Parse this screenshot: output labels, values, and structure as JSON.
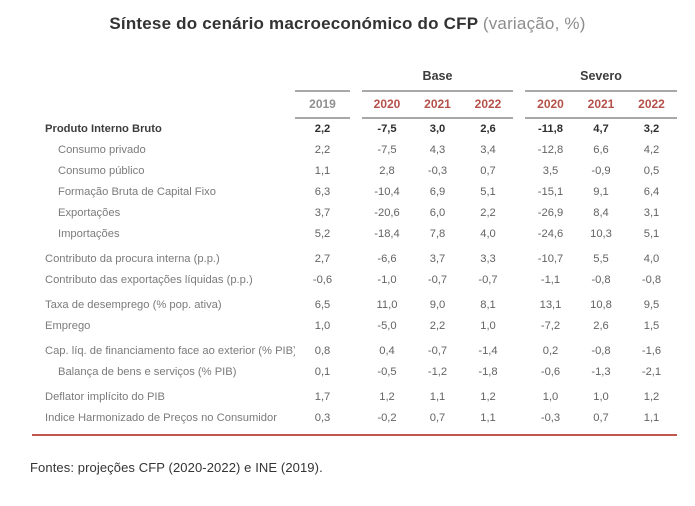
{
  "title": {
    "main": "Síntese do cenário macroeconómico do CFP ",
    "sub": "(variação, %)"
  },
  "table": {
    "group_headers": {
      "base": "Base",
      "severo": "Severo"
    },
    "baseline_year": "2019",
    "base_years": [
      "2020",
      "2021",
      "2022"
    ],
    "severo_years": [
      "2020",
      "2021",
      "2022"
    ],
    "columns": [
      "2019",
      "Base 2020",
      "Base 2021",
      "Base 2022",
      "Severo 2020",
      "Severo 2021",
      "Severo 2022"
    ],
    "rows": [
      {
        "label": "Produto Interno Bruto",
        "bold": true,
        "indent": false,
        "spaced": false,
        "values": [
          "2,2",
          "-7,5",
          "3,0",
          "2,6",
          "-11,8",
          "4,7",
          "3,2"
        ]
      },
      {
        "label": "Consumo privado",
        "bold": false,
        "indent": true,
        "spaced": false,
        "values": [
          "2,2",
          "-7,5",
          "4,3",
          "3,4",
          "-12,8",
          "6,6",
          "4,2"
        ]
      },
      {
        "label": "Consumo público",
        "bold": false,
        "indent": true,
        "spaced": false,
        "values": [
          "1,1",
          "2,8",
          "-0,3",
          "0,7",
          "3,5",
          "-0,9",
          "0,5"
        ]
      },
      {
        "label": "Formação Bruta de Capital Fixo",
        "bold": false,
        "indent": true,
        "spaced": false,
        "values": [
          "6,3",
          "-10,4",
          "6,9",
          "5,1",
          "-15,1",
          "9,1",
          "6,4"
        ]
      },
      {
        "label": "Exportações",
        "bold": false,
        "indent": true,
        "spaced": false,
        "values": [
          "3,7",
          "-20,6",
          "6,0",
          "2,2",
          "-26,9",
          "8,4",
          "3,1"
        ]
      },
      {
        "label": "Importações",
        "bold": false,
        "indent": true,
        "spaced": false,
        "values": [
          "5,2",
          "-18,4",
          "7,8",
          "4,0",
          "-24,6",
          "10,3",
          "5,1"
        ]
      },
      {
        "label": "Contributo da procura interna (p.p.)",
        "bold": false,
        "indent": false,
        "spaced": true,
        "values": [
          "2,7",
          "-6,6",
          "3,7",
          "3,3",
          "-10,7",
          "5,5",
          "4,0"
        ]
      },
      {
        "label": "Contributo das exportações líquidas (p.p.)",
        "bold": false,
        "indent": false,
        "spaced": false,
        "values": [
          "-0,6",
          "-1,0",
          "-0,7",
          "-0,7",
          "-1,1",
          "-0,8",
          "-0,8"
        ]
      },
      {
        "label": "Taxa de desemprego (% pop. ativa)",
        "bold": false,
        "indent": false,
        "spaced": true,
        "values": [
          "6,5",
          "11,0",
          "9,0",
          "8,1",
          "13,1",
          "10,8",
          "9,5"
        ]
      },
      {
        "label": "Emprego",
        "bold": false,
        "indent": false,
        "spaced": false,
        "values": [
          "1,0",
          "-5,0",
          "2,2",
          "1,0",
          "-7,2",
          "2,6",
          "1,5"
        ]
      },
      {
        "label": "Cap. líq. de financiamento face ao exterior (% PIB)",
        "bold": false,
        "indent": false,
        "spaced": true,
        "values": [
          "0,8",
          "0,4",
          "-0,7",
          "-1,4",
          "0,2",
          "-0,8",
          "-1,6"
        ]
      },
      {
        "label": "Balança de bens e serviços (% PIB)",
        "bold": false,
        "indent": true,
        "spaced": false,
        "values": [
          "0,1",
          "-0,5",
          "-1,2",
          "-1,8",
          "-0,6",
          "-1,3",
          "-2,1"
        ]
      },
      {
        "label": "Deflator implícito do PIB",
        "bold": false,
        "indent": false,
        "spaced": true,
        "values": [
          "1,7",
          "1,2",
          "1,1",
          "1,2",
          "1,0",
          "1,0",
          "1,2"
        ]
      },
      {
        "label": "Indice Harmonizado de Preços no Consumidor",
        "bold": false,
        "indent": false,
        "spaced": false,
        "values": [
          "0,3",
          "-0,2",
          "0,7",
          "1,1",
          "-0,3",
          "0,7",
          "1,1"
        ]
      }
    ]
  },
  "footer": {
    "source": "Fontes: projeções CFP (2020-2022) e INE (2019)."
  },
  "colors": {
    "accent_red_text": "#b5514a",
    "accent_red_line": "#c2564e",
    "rule_gray": "#a8a8a8",
    "label_gray": "#7b7b7b",
    "bold_text": "#2e2e2e"
  }
}
